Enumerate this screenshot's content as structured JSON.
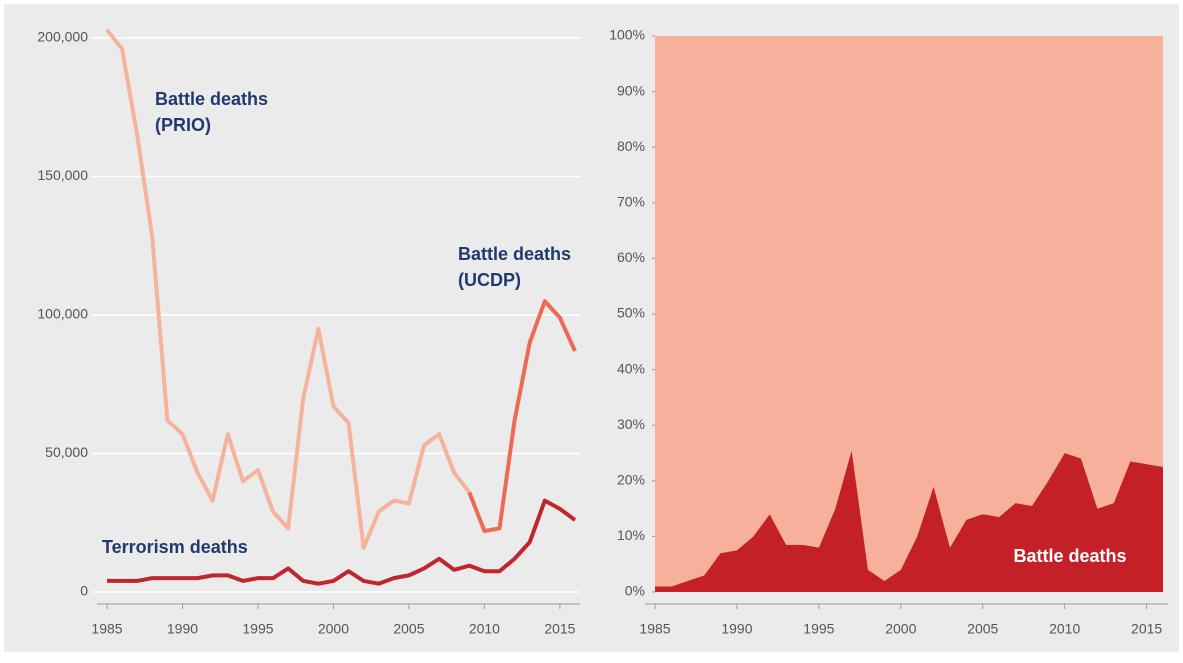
{
  "chart_data": [
    {
      "type": "line",
      "x": [
        1985,
        1986,
        1987,
        1988,
        1989,
        1990,
        1991,
        1992,
        1993,
        1994,
        1995,
        1996,
        1997,
        1998,
        1999,
        2000,
        2001,
        2002,
        2003,
        2004,
        2005,
        2006,
        2007,
        2008,
        2009,
        2010,
        2011,
        2012,
        2013,
        2014,
        2015,
        2016
      ],
      "xlim": [
        1985,
        2016
      ],
      "xticks": [
        1985,
        1990,
        1995,
        2000,
        2005,
        2010,
        2015
      ],
      "ylim": [
        0,
        200000
      ],
      "yticks": [
        0,
        {
          "value": 50000,
          "label": "50,000"
        },
        {
          "value": 100000,
          "label": "100,000"
        },
        {
          "value": 150000,
          "label": "150,000"
        },
        {
          "value": 200000,
          "label": "200,000"
        }
      ],
      "grid": true,
      "series": [
        {
          "name": "Battle deaths (PRIO)",
          "color": "#f6b39b",
          "values": [
            203000,
            196000,
            165000,
            128000,
            62000,
            57000,
            43000,
            33000,
            57000,
            40000,
            44000,
            29000,
            23000,
            70000,
            95000,
            67000,
            61000,
            16000,
            29000,
            33000,
            32000,
            53000,
            57000,
            43000,
            36000,
            null,
            null,
            null,
            null,
            null,
            null,
            null
          ]
        },
        {
          "name": "Battle deaths (UCDP)",
          "color": "#ee6a50",
          "values": [
            null,
            null,
            null,
            null,
            null,
            null,
            null,
            null,
            null,
            null,
            null,
            null,
            null,
            null,
            null,
            null,
            null,
            null,
            null,
            null,
            null,
            null,
            null,
            null,
            36000,
            22000,
            23000,
            62000,
            90000,
            105000,
            99000,
            87000
          ]
        },
        {
          "name": "Terrorism deaths",
          "color": "#c0262d",
          "values": [
            4000,
            4000,
            4000,
            5000,
            5000,
            5000,
            5000,
            6000,
            6000,
            4000,
            5000,
            5000,
            8500,
            4000,
            3000,
            4000,
            7500,
            4000,
            3000,
            5000,
            6000,
            8500,
            12000,
            8000,
            9500,
            7500,
            7500,
            12000,
            18000,
            33000,
            30000,
            26000
          ]
        }
      ],
      "annotations": [
        [
          "Battle deaths",
          "(PRIO)"
        ],
        [
          "Battle deaths",
          "(UCDP)"
        ],
        [
          "Terrorism deaths"
        ]
      ]
    },
    {
      "type": "area",
      "x": [
        1985,
        1986,
        1987,
        1988,
        1989,
        1990,
        1991,
        1992,
        1993,
        1994,
        1995,
        1996,
        1997,
        1998,
        1999,
        2000,
        2001,
        2002,
        2003,
        2004,
        2005,
        2006,
        2007,
        2008,
        2009,
        2010,
        2011,
        2012,
        2013,
        2014,
        2015,
        2016
      ],
      "xlim": [
        1985,
        2016
      ],
      "xticks": [
        1985,
        1990,
        1995,
        2000,
        2005,
        2010,
        2015
      ],
      "ylim": [
        0,
        100
      ],
      "yticks": [
        {
          "value": 0,
          "label": "0%"
        },
        {
          "value": 10,
          "label": "10%"
        },
        {
          "value": 20,
          "label": "20%"
        },
        {
          "value": 30,
          "label": "30%"
        },
        {
          "value": 40,
          "label": "40%"
        },
        {
          "value": 50,
          "label": "50%"
        },
        {
          "value": 60,
          "label": "60%"
        },
        {
          "value": 70,
          "label": "70%"
        },
        {
          "value": 80,
          "label": "80%"
        },
        {
          "value": 90,
          "label": "90%"
        },
        {
          "value": 100,
          "label": "100%"
        }
      ],
      "series": [
        {
          "name": "Terrorism deaths",
          "color": "#c42028",
          "values": [
            1,
            1,
            2,
            3,
            7,
            7.5,
            10,
            14,
            8.5,
            8.5,
            8,
            15,
            25.5,
            4,
            2,
            4,
            10,
            19,
            8,
            13,
            14,
            13.5,
            16,
            15.5,
            20,
            25,
            24,
            15,
            16,
            23.5,
            23,
            22.5
          ]
        },
        {
          "name": "Battle deaths",
          "color": "#f7b09a",
          "values": [
            99,
            99,
            98,
            97,
            93,
            92.5,
            90,
            86,
            91.5,
            91.5,
            92,
            85,
            74.5,
            96,
            98,
            96,
            90,
            81,
            92,
            87,
            86,
            86.5,
            84,
            84.5,
            80,
            75,
            76,
            85,
            84,
            76.5,
            77,
            77.5
          ]
        }
      ]
    }
  ]
}
